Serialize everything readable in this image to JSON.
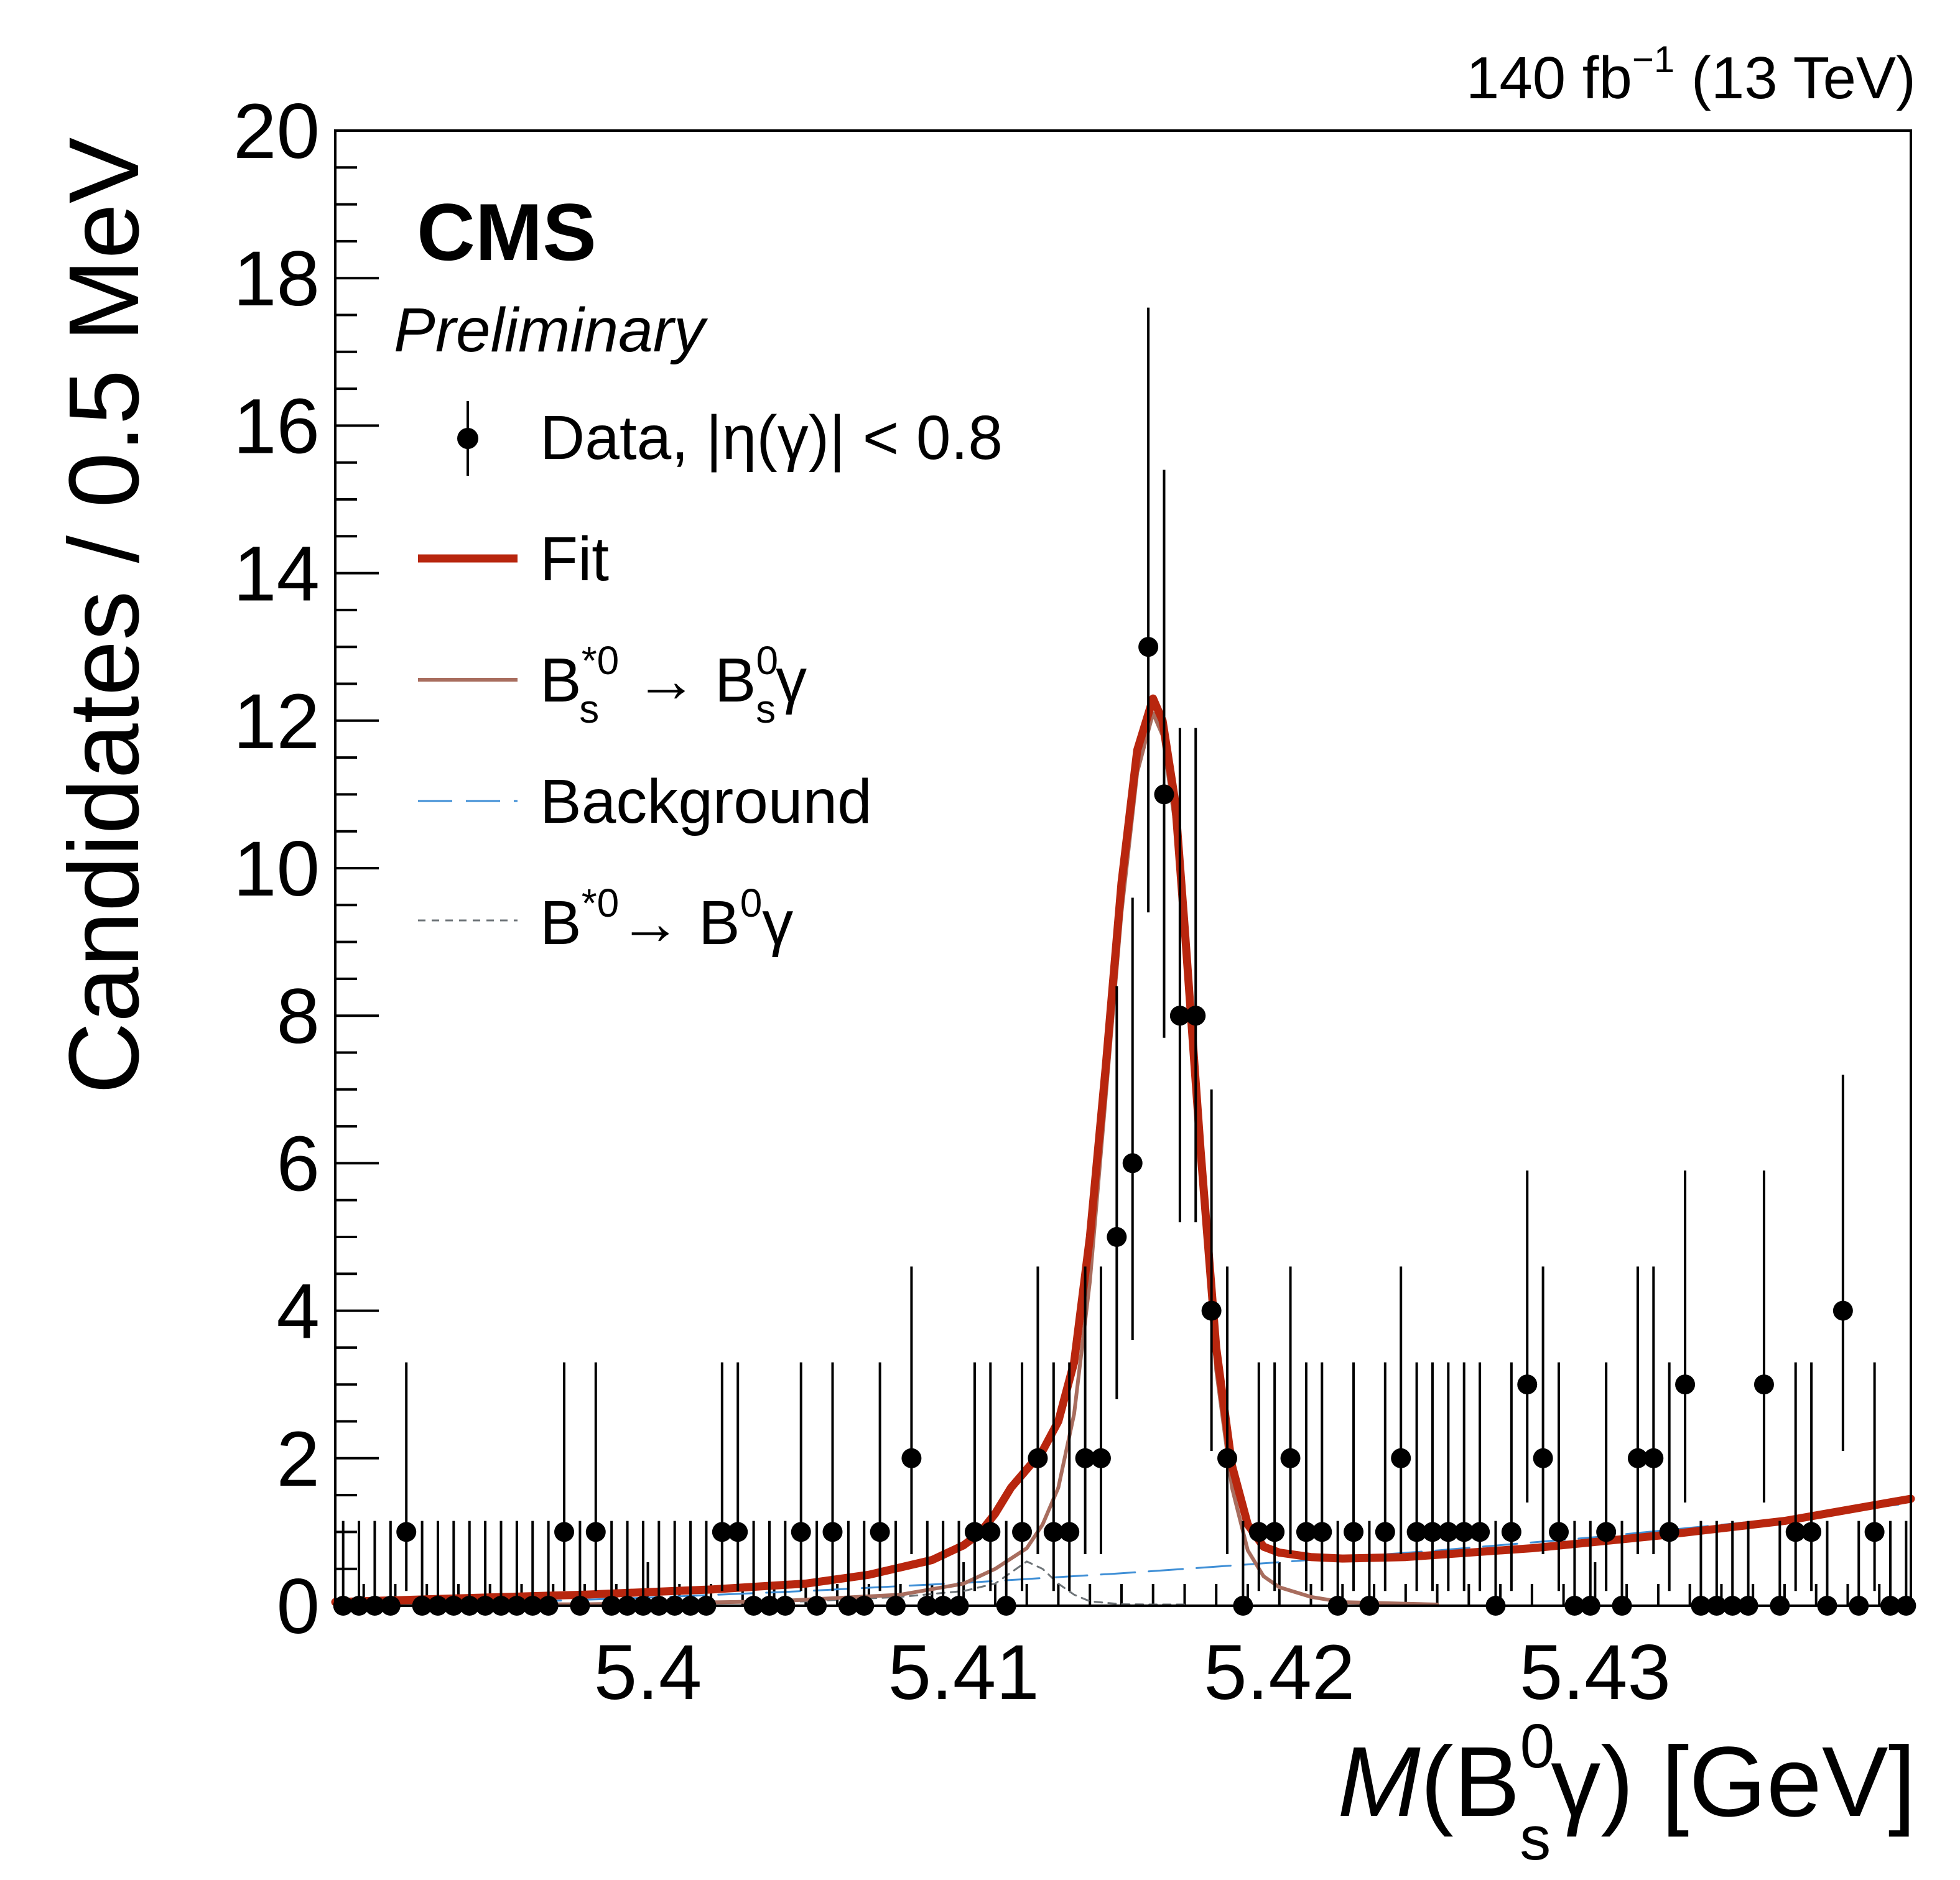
{
  "header": {
    "lumi": "140 fb",
    "lumi_exp": "−1",
    "energy": "(13 TeV)"
  },
  "labels": {
    "experiment": "CMS",
    "status": "Preliminary"
  },
  "axes": {
    "ylabel": "Candidates / 0.5 MeV",
    "xlabel": {
      "var": "M",
      "open": "(B",
      "sup": "0",
      "sub": "s",
      "close": "γ) [GeV]"
    }
  },
  "legend": {
    "data": "Data, |η(γ)| < 0.8",
    "fit": "Fit",
    "signal": {
      "a": "B",
      "a_sup": "*0",
      "a_sub": "s",
      "arrow": " → B",
      "b_sup": "0",
      "b_sub": "s",
      "end": "γ"
    },
    "background": "Background",
    "bstar": {
      "a": "B",
      "a_sup": "*0",
      "arrow": "→ B",
      "b_sup": "0",
      "end": "γ"
    }
  },
  "colors": {
    "fit": "#b8260e",
    "signal": "#a86d5e",
    "background": "#3f8fd6",
    "bstar": "#6e7478",
    "data": "#000000"
  },
  "chart_data": {
    "type": "scatter",
    "xlim": [
      5.3901,
      5.44
    ],
    "ylim": [
      0,
      20
    ],
    "x_major_ticks": [
      5.4,
      5.41,
      5.42,
      5.43
    ],
    "x_tick_labels": [
      "5.4",
      "5.41",
      "5.42",
      "5.43"
    ],
    "y_major_ticks": [
      0,
      2,
      4,
      6,
      8,
      10,
      12,
      14,
      16,
      18,
      20
    ],
    "y_tick_labels": [
      "0",
      "2",
      "4",
      "6",
      "8",
      "10",
      "12",
      "14",
      "16",
      "18",
      "20"
    ],
    "legend_position": "top-left",
    "series": [
      {
        "name": "Data, |η(γ)| < 0.8",
        "kind": "points",
        "x_start": 5.39035,
        "bin_width": 0.0005,
        "y": [
          0,
          0,
          0,
          0,
          1,
          0,
          0,
          0,
          0,
          0,
          0,
          0,
          0,
          0,
          1,
          0,
          1,
          0,
          0,
          0,
          0,
          0,
          0,
          0,
          1,
          1,
          0,
          0,
          0,
          1,
          0,
          1,
          0,
          0,
          1,
          0,
          2,
          0,
          0,
          0,
          1,
          1,
          0,
          1,
          2,
          1,
          1,
          2,
          2,
          5,
          6,
          13,
          11,
          8,
          8,
          4,
          2,
          0,
          1,
          1,
          2,
          1,
          1,
          0,
          1,
          0,
          1,
          2,
          1,
          1,
          1,
          1,
          1,
          0,
          1,
          3,
          2,
          1,
          0,
          0,
          1,
          0,
          2,
          2,
          1,
          3,
          0,
          0,
          0,
          0,
          3,
          0,
          1,
          1,
          0,
          4,
          0,
          1,
          0,
          0
        ],
        "err_up": [
          1.15,
          1.15,
          1.15,
          1.15,
          2.3,
          1.15,
          1.15,
          1.15,
          1.15,
          1.15,
          1.15,
          1.15,
          1.15,
          1.15,
          2.3,
          1.15,
          2.3,
          1.15,
          1.15,
          1.15,
          1.15,
          1.15,
          1.15,
          1.15,
          2.3,
          2.3,
          1.15,
          1.15,
          1.15,
          2.3,
          1.15,
          2.3,
          1.15,
          1.15,
          2.3,
          1.15,
          2.6,
          1.15,
          1.15,
          1.15,
          2.3,
          2.3,
          1.15,
          2.3,
          2.6,
          2.3,
          2.3,
          2.6,
          2.6,
          3.4,
          3.6,
          4.6,
          4.4,
          3.9,
          3.9,
          3.0,
          2.6,
          1.15,
          2.3,
          2.3,
          2.6,
          2.3,
          2.3,
          1.15,
          2.3,
          1.15,
          2.3,
          2.6,
          2.3,
          2.3,
          2.3,
          2.3,
          2.3,
          1.15,
          2.3,
          2.9,
          2.6,
          2.3,
          1.15,
          1.15,
          2.3,
          1.15,
          2.6,
          2.6,
          2.3,
          2.9,
          1.15,
          1.15,
          1.15,
          1.15,
          2.9,
          1.15,
          2.3,
          2.3,
          1.15,
          3.2,
          1.15,
          2.3,
          1.15,
          1.15
        ],
        "err_down": [
          0,
          0,
          0,
          0,
          0.8,
          0,
          0,
          0,
          0,
          0,
          0,
          0,
          0,
          0,
          0.8,
          0,
          0.8,
          0,
          0,
          0,
          0,
          0,
          0,
          0,
          0.8,
          0.8,
          0,
          0,
          0,
          0.8,
          0,
          0.8,
          0,
          0,
          0.8,
          0,
          1.3,
          0,
          0,
          0,
          0.8,
          0.8,
          0,
          0.8,
          1.3,
          0.8,
          0.8,
          1.3,
          1.3,
          2.2,
          2.4,
          3.6,
          3.3,
          2.8,
          2.8,
          1.9,
          1.3,
          0,
          0.8,
          0.8,
          1.3,
          0.8,
          0.8,
          0,
          0.8,
          0,
          0.8,
          1.3,
          0.8,
          0.8,
          0.8,
          0.8,
          0.8,
          0,
          0.8,
          1.6,
          1.3,
          0.8,
          0,
          0,
          0.8,
          0,
          1.3,
          1.3,
          0.8,
          1.6,
          0,
          0,
          0,
          0,
          1.6,
          0,
          0.8,
          0.8,
          0,
          1.9,
          0,
          0.8,
          0,
          0
        ]
      },
      {
        "name": "Fit",
        "kind": "line",
        "x": [
          5.3901,
          5.394,
          5.398,
          5.402,
          5.405,
          5.407,
          5.409,
          5.41,
          5.4105,
          5.411,
          5.4115,
          5.412,
          5.4125,
          5.413,
          5.4135,
          5.414,
          5.4145,
          5.415,
          5.4155,
          5.416,
          5.4163,
          5.4167,
          5.417,
          5.4175,
          5.418,
          5.4185,
          5.419,
          5.4195,
          5.42,
          5.421,
          5.422,
          5.424,
          5.428,
          5.432,
          5.436,
          5.44
        ],
        "y": [
          0.05,
          0.1,
          0.15,
          0.22,
          0.3,
          0.42,
          0.62,
          0.82,
          0.98,
          1.25,
          1.6,
          1.85,
          2.1,
          2.5,
          3.3,
          5.0,
          7.3,
          9.8,
          11.6,
          12.3,
          12.0,
          10.9,
          9.2,
          6.2,
          3.5,
          1.9,
          1.1,
          0.8,
          0.72,
          0.66,
          0.64,
          0.66,
          0.78,
          0.95,
          1.15,
          1.45
        ]
      },
      {
        "name": "B_s^*0 → B_s^0 γ",
        "kind": "line",
        "x": [
          5.3901,
          5.398,
          5.404,
          5.408,
          5.41,
          5.411,
          5.412,
          5.4125,
          5.413,
          5.4135,
          5.414,
          5.4145,
          5.415,
          5.4155,
          5.416,
          5.4163,
          5.4167,
          5.417,
          5.4175,
          5.418,
          5.4185,
          5.419,
          5.4195,
          5.42,
          5.421,
          5.422,
          5.425
        ],
        "y": [
          0,
          0.02,
          0.06,
          0.15,
          0.3,
          0.5,
          0.78,
          1.1,
          1.6,
          2.6,
          4.4,
          6.9,
          9.4,
          11.3,
          12.1,
          11.8,
          10.6,
          8.9,
          5.9,
          3.2,
          1.6,
          0.75,
          0.4,
          0.25,
          0.12,
          0.05,
          0
        ]
      },
      {
        "name": "Background",
        "kind": "line",
        "x": [
          5.3901,
          5.395,
          5.4,
          5.405,
          5.41,
          5.415,
          5.42,
          5.425,
          5.43,
          5.435,
          5.44
        ],
        "y": [
          0.0,
          0.04,
          0.11,
          0.2,
          0.31,
          0.44,
          0.59,
          0.75,
          0.93,
          1.14,
          1.39
        ]
      },
      {
        "name": "B*0 → B0 γ",
        "kind": "line",
        "x": [
          5.3901,
          5.4,
          5.405,
          5.408,
          5.41,
          5.411,
          5.4115,
          5.412,
          5.4125,
          5.413,
          5.4135,
          5.414,
          5.415,
          5.416,
          5.417
        ],
        "y": [
          0,
          0.02,
          0.06,
          0.12,
          0.2,
          0.3,
          0.45,
          0.6,
          0.5,
          0.3,
          0.15,
          0.06,
          0.02,
          0.01,
          0
        ]
      }
    ]
  }
}
